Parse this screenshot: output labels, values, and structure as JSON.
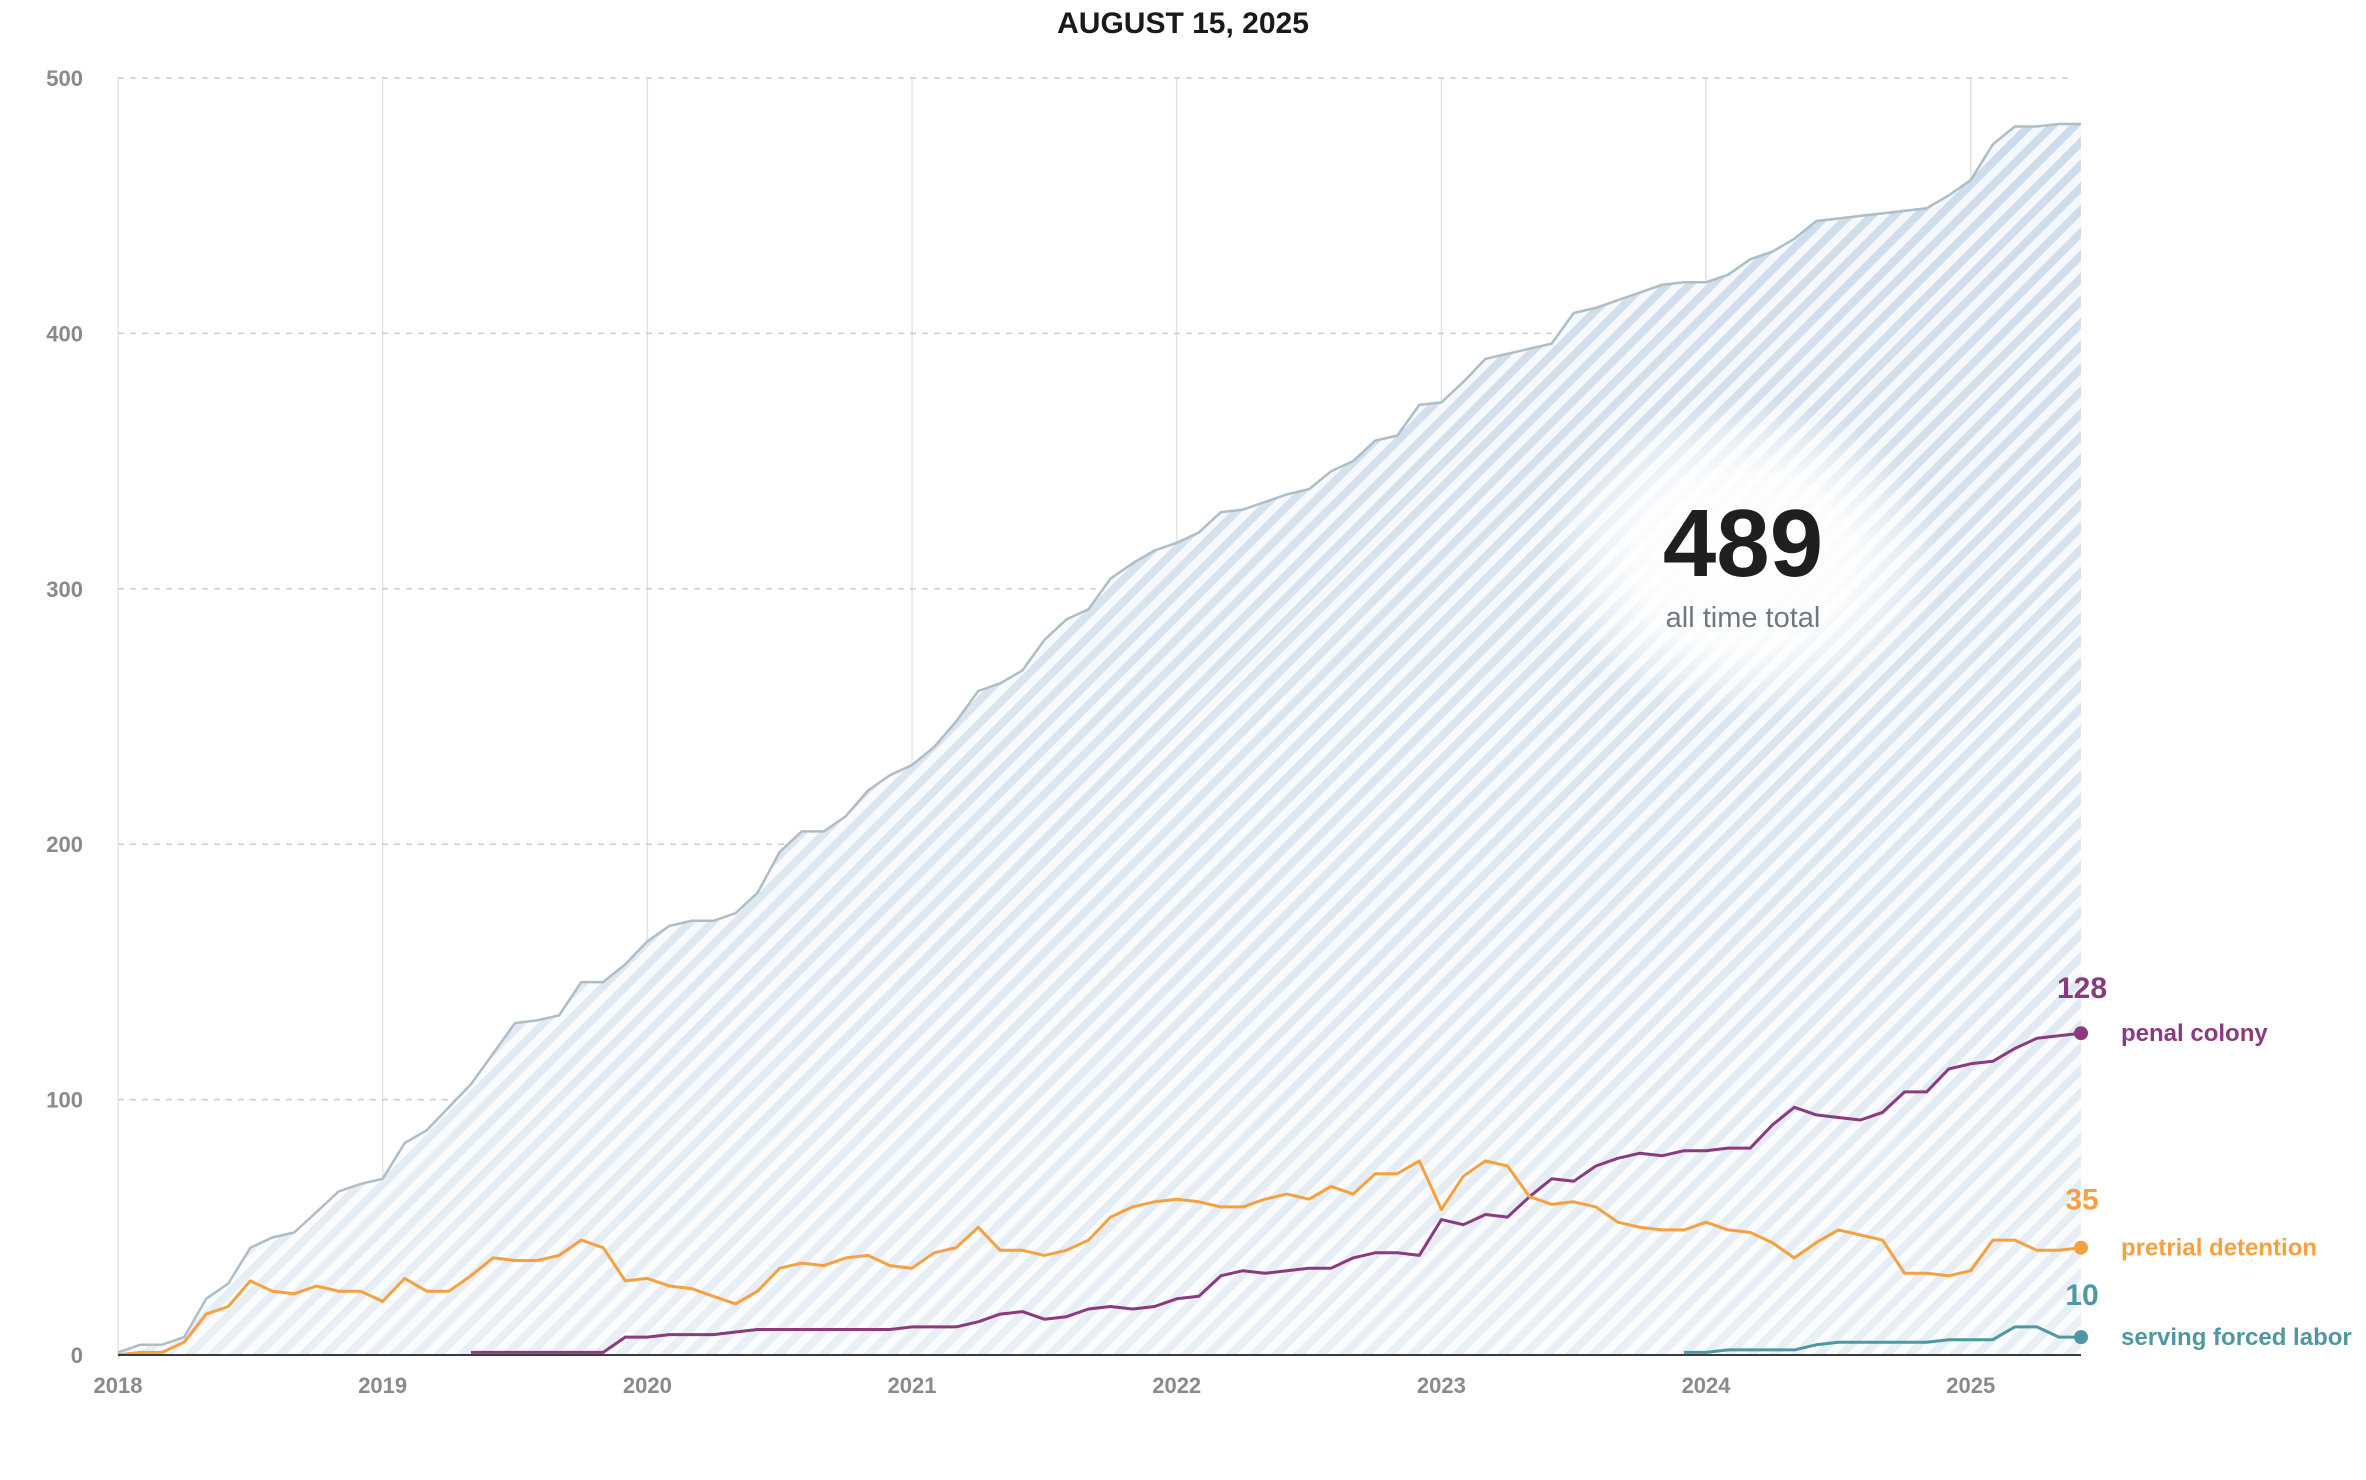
{
  "chart_data": {
    "type": "line",
    "title": "AUGUST 15, 2025",
    "xlabel": "",
    "ylabel": "",
    "ylim": [
      0,
      500
    ],
    "xlim": [
      "2018-01",
      "2025-06"
    ],
    "x_ticks": [
      "2018",
      "2019",
      "2020",
      "2021",
      "2022",
      "2023",
      "2024",
      "2025"
    ],
    "y_ticks": [
      "0",
      "100",
      "200",
      "300",
      "400",
      "500"
    ],
    "grid": true,
    "annotation": {
      "value": "489",
      "label": "all time total"
    },
    "total_area": {
      "x": [
        "2018-01",
        "2018-02",
        "2018-03",
        "2018-04",
        "2018-05",
        "2018-06",
        "2018-07",
        "2018-08",
        "2018-09",
        "2018-10",
        "2018-11",
        "2018-12",
        "2019-01",
        "2019-02",
        "2019-03",
        "2019-04",
        "2019-05",
        "2019-06",
        "2019-07",
        "2019-08",
        "2019-09",
        "2019-10",
        "2019-11",
        "2019-12",
        "2020-01",
        "2020-02",
        "2020-03",
        "2020-04",
        "2020-05",
        "2020-06",
        "2020-07",
        "2020-08",
        "2020-09",
        "2020-10",
        "2020-11",
        "2020-12",
        "2021-01",
        "2021-02",
        "2021-03",
        "2021-04",
        "2021-05",
        "2021-06",
        "2021-07",
        "2021-08",
        "2021-09",
        "2021-10",
        "2021-11",
        "2021-12",
        "2022-01",
        "2022-02",
        "2022-03",
        "2022-04",
        "2022-05",
        "2022-06",
        "2022-07",
        "2022-08",
        "2022-09",
        "2022-10",
        "2022-11",
        "2022-12",
        "2023-01",
        "2023-02",
        "2023-03",
        "2023-04",
        "2023-05",
        "2023-06",
        "2023-07",
        "2023-08",
        "2023-09",
        "2023-10",
        "2023-11",
        "2023-12",
        "2024-01",
        "2024-02",
        "2024-03",
        "2024-04",
        "2024-05",
        "2024-06",
        "2024-07",
        "2024-08",
        "2024-09",
        "2024-10",
        "2024-11",
        "2024-12",
        "2025-01",
        "2025-02",
        "2025-03",
        "2025-04",
        "2025-05",
        "2025-06"
      ],
      "values": [
        1,
        4,
        4,
        7,
        22,
        28,
        42,
        46,
        48,
        56,
        64,
        67,
        69,
        83,
        88,
        97,
        106,
        118,
        130,
        131,
        133,
        146,
        146,
        153,
        162,
        168,
        170,
        170,
        173,
        181,
        197,
        205,
        205,
        211,
        221,
        227,
        231,
        238,
        248,
        260,
        263,
        268,
        280,
        288,
        292,
        304,
        310,
        315,
        318,
        322,
        330,
        331,
        334,
        337,
        339,
        346,
        350,
        358,
        360,
        372,
        373,
        381,
        390,
        392,
        394,
        396,
        408,
        410,
        413,
        416,
        419,
        420,
        420,
        423,
        429,
        432,
        437,
        444,
        445,
        446,
        447,
        448,
        449,
        454,
        460,
        474,
        481,
        481,
        482,
        482
      ]
    },
    "series": [
      {
        "name": "penal colony",
        "color": "#8b3a7d",
        "end_value": "128",
        "x": [
          "2019-05",
          "2019-06",
          "2019-07",
          "2019-08",
          "2019-09",
          "2019-10",
          "2019-11",
          "2019-12",
          "2020-01",
          "2020-02",
          "2020-03",
          "2020-04",
          "2020-05",
          "2020-06",
          "2020-07",
          "2020-08",
          "2020-09",
          "2020-10",
          "2020-11",
          "2020-12",
          "2021-01",
          "2021-02",
          "2021-03",
          "2021-04",
          "2021-05",
          "2021-06",
          "2021-07",
          "2021-08",
          "2021-09",
          "2021-10",
          "2021-11",
          "2021-12",
          "2022-01",
          "2022-02",
          "2022-03",
          "2022-04",
          "2022-05",
          "2022-06",
          "2022-07",
          "2022-08",
          "2022-09",
          "2022-10",
          "2022-11",
          "2022-12",
          "2023-01",
          "2023-02",
          "2023-03",
          "2023-04",
          "2023-05",
          "2023-06",
          "2023-07",
          "2023-08",
          "2023-09",
          "2023-10",
          "2023-11",
          "2023-12",
          "2024-01",
          "2024-02",
          "2024-03",
          "2024-04",
          "2024-05",
          "2024-06",
          "2024-07",
          "2024-08",
          "2024-09",
          "2024-10",
          "2024-11",
          "2024-12",
          "2025-01",
          "2025-02",
          "2025-03",
          "2025-04",
          "2025-05",
          "2025-06"
        ],
        "values": [
          1,
          1,
          1,
          1,
          1,
          1,
          1,
          7,
          7,
          8,
          8,
          8,
          9,
          10,
          10,
          10,
          10,
          10,
          10,
          10,
          11,
          11,
          11,
          13,
          16,
          17,
          14,
          15,
          18,
          19,
          18,
          19,
          22,
          23,
          31,
          33,
          32,
          33,
          34,
          34,
          38,
          40,
          40,
          39,
          53,
          51,
          55,
          54,
          62,
          69,
          68,
          74,
          77,
          79,
          78,
          80,
          80,
          81,
          81,
          90,
          97,
          94,
          93,
          92,
          95,
          103,
          103,
          112,
          114,
          115,
          120,
          124,
          125,
          126
        ]
      },
      {
        "name": "pretrial detention",
        "color": "#f5a142",
        "end_value": "35",
        "x": [
          "2018-01",
          "2018-02",
          "2018-03",
          "2018-04",
          "2018-05",
          "2018-06",
          "2018-07",
          "2018-08",
          "2018-09",
          "2018-10",
          "2018-11",
          "2018-12",
          "2019-01",
          "2019-02",
          "2019-03",
          "2019-04",
          "2019-05",
          "2019-06",
          "2019-07",
          "2019-08",
          "2019-09",
          "2019-10",
          "2019-11",
          "2019-12",
          "2020-01",
          "2020-02",
          "2020-03",
          "2020-04",
          "2020-05",
          "2020-06",
          "2020-07",
          "2020-08",
          "2020-09",
          "2020-10",
          "2020-11",
          "2020-12",
          "2021-01",
          "2021-02",
          "2021-03",
          "2021-04",
          "2021-05",
          "2021-06",
          "2021-07",
          "2021-08",
          "2021-09",
          "2021-10",
          "2021-11",
          "2021-12",
          "2022-01",
          "2022-02",
          "2022-03",
          "2022-04",
          "2022-05",
          "2022-06",
          "2022-07",
          "2022-08",
          "2022-09",
          "2022-10",
          "2022-11",
          "2022-12",
          "2023-01",
          "2023-02",
          "2023-03",
          "2023-04",
          "2023-05",
          "2023-06",
          "2023-07",
          "2023-08",
          "2023-09",
          "2023-10",
          "2023-11",
          "2023-12",
          "2024-01",
          "2024-02",
          "2024-03",
          "2024-04",
          "2024-05",
          "2024-06",
          "2024-07",
          "2024-08",
          "2024-09",
          "2024-10",
          "2024-11",
          "2024-12",
          "2025-01",
          "2025-02",
          "2025-03",
          "2025-04",
          "2025-05",
          "2025-06"
        ],
        "values": [
          0,
          1,
          1,
          5,
          16,
          19,
          29,
          25,
          24,
          27,
          25,
          25,
          21,
          30,
          25,
          25,
          31,
          38,
          37,
          37,
          39,
          45,
          42,
          29,
          30,
          27,
          26,
          23,
          20,
          25,
          34,
          36,
          35,
          38,
          39,
          35,
          34,
          40,
          42,
          50,
          41,
          41,
          39,
          41,
          45,
          54,
          58,
          60,
          61,
          60,
          58,
          58,
          61,
          63,
          61,
          66,
          63,
          71,
          71,
          76,
          57,
          70,
          76,
          74,
          62,
          59,
          60,
          58,
          52,
          50,
          49,
          49,
          52,
          49,
          48,
          44,
          38,
          44,
          49,
          47,
          45,
          32,
          32,
          31,
          33,
          45,
          45,
          41,
          41,
          42
        ]
      },
      {
        "name": "serving forced labor",
        "color": "#4f97a3",
        "end_value": "10",
        "x": [
          "2023-12",
          "2024-01",
          "2024-02",
          "2024-03",
          "2024-04",
          "2024-05",
          "2024-06",
          "2024-07",
          "2024-08",
          "2024-09",
          "2024-10",
          "2024-11",
          "2024-12",
          "2025-01",
          "2025-02",
          "2025-03",
          "2025-04",
          "2025-05",
          "2025-06"
        ],
        "values": [
          1,
          1,
          2,
          2,
          2,
          2,
          4,
          5,
          5,
          5,
          5,
          5,
          6,
          6,
          6,
          11,
          11,
          7,
          7
        ]
      }
    ]
  }
}
